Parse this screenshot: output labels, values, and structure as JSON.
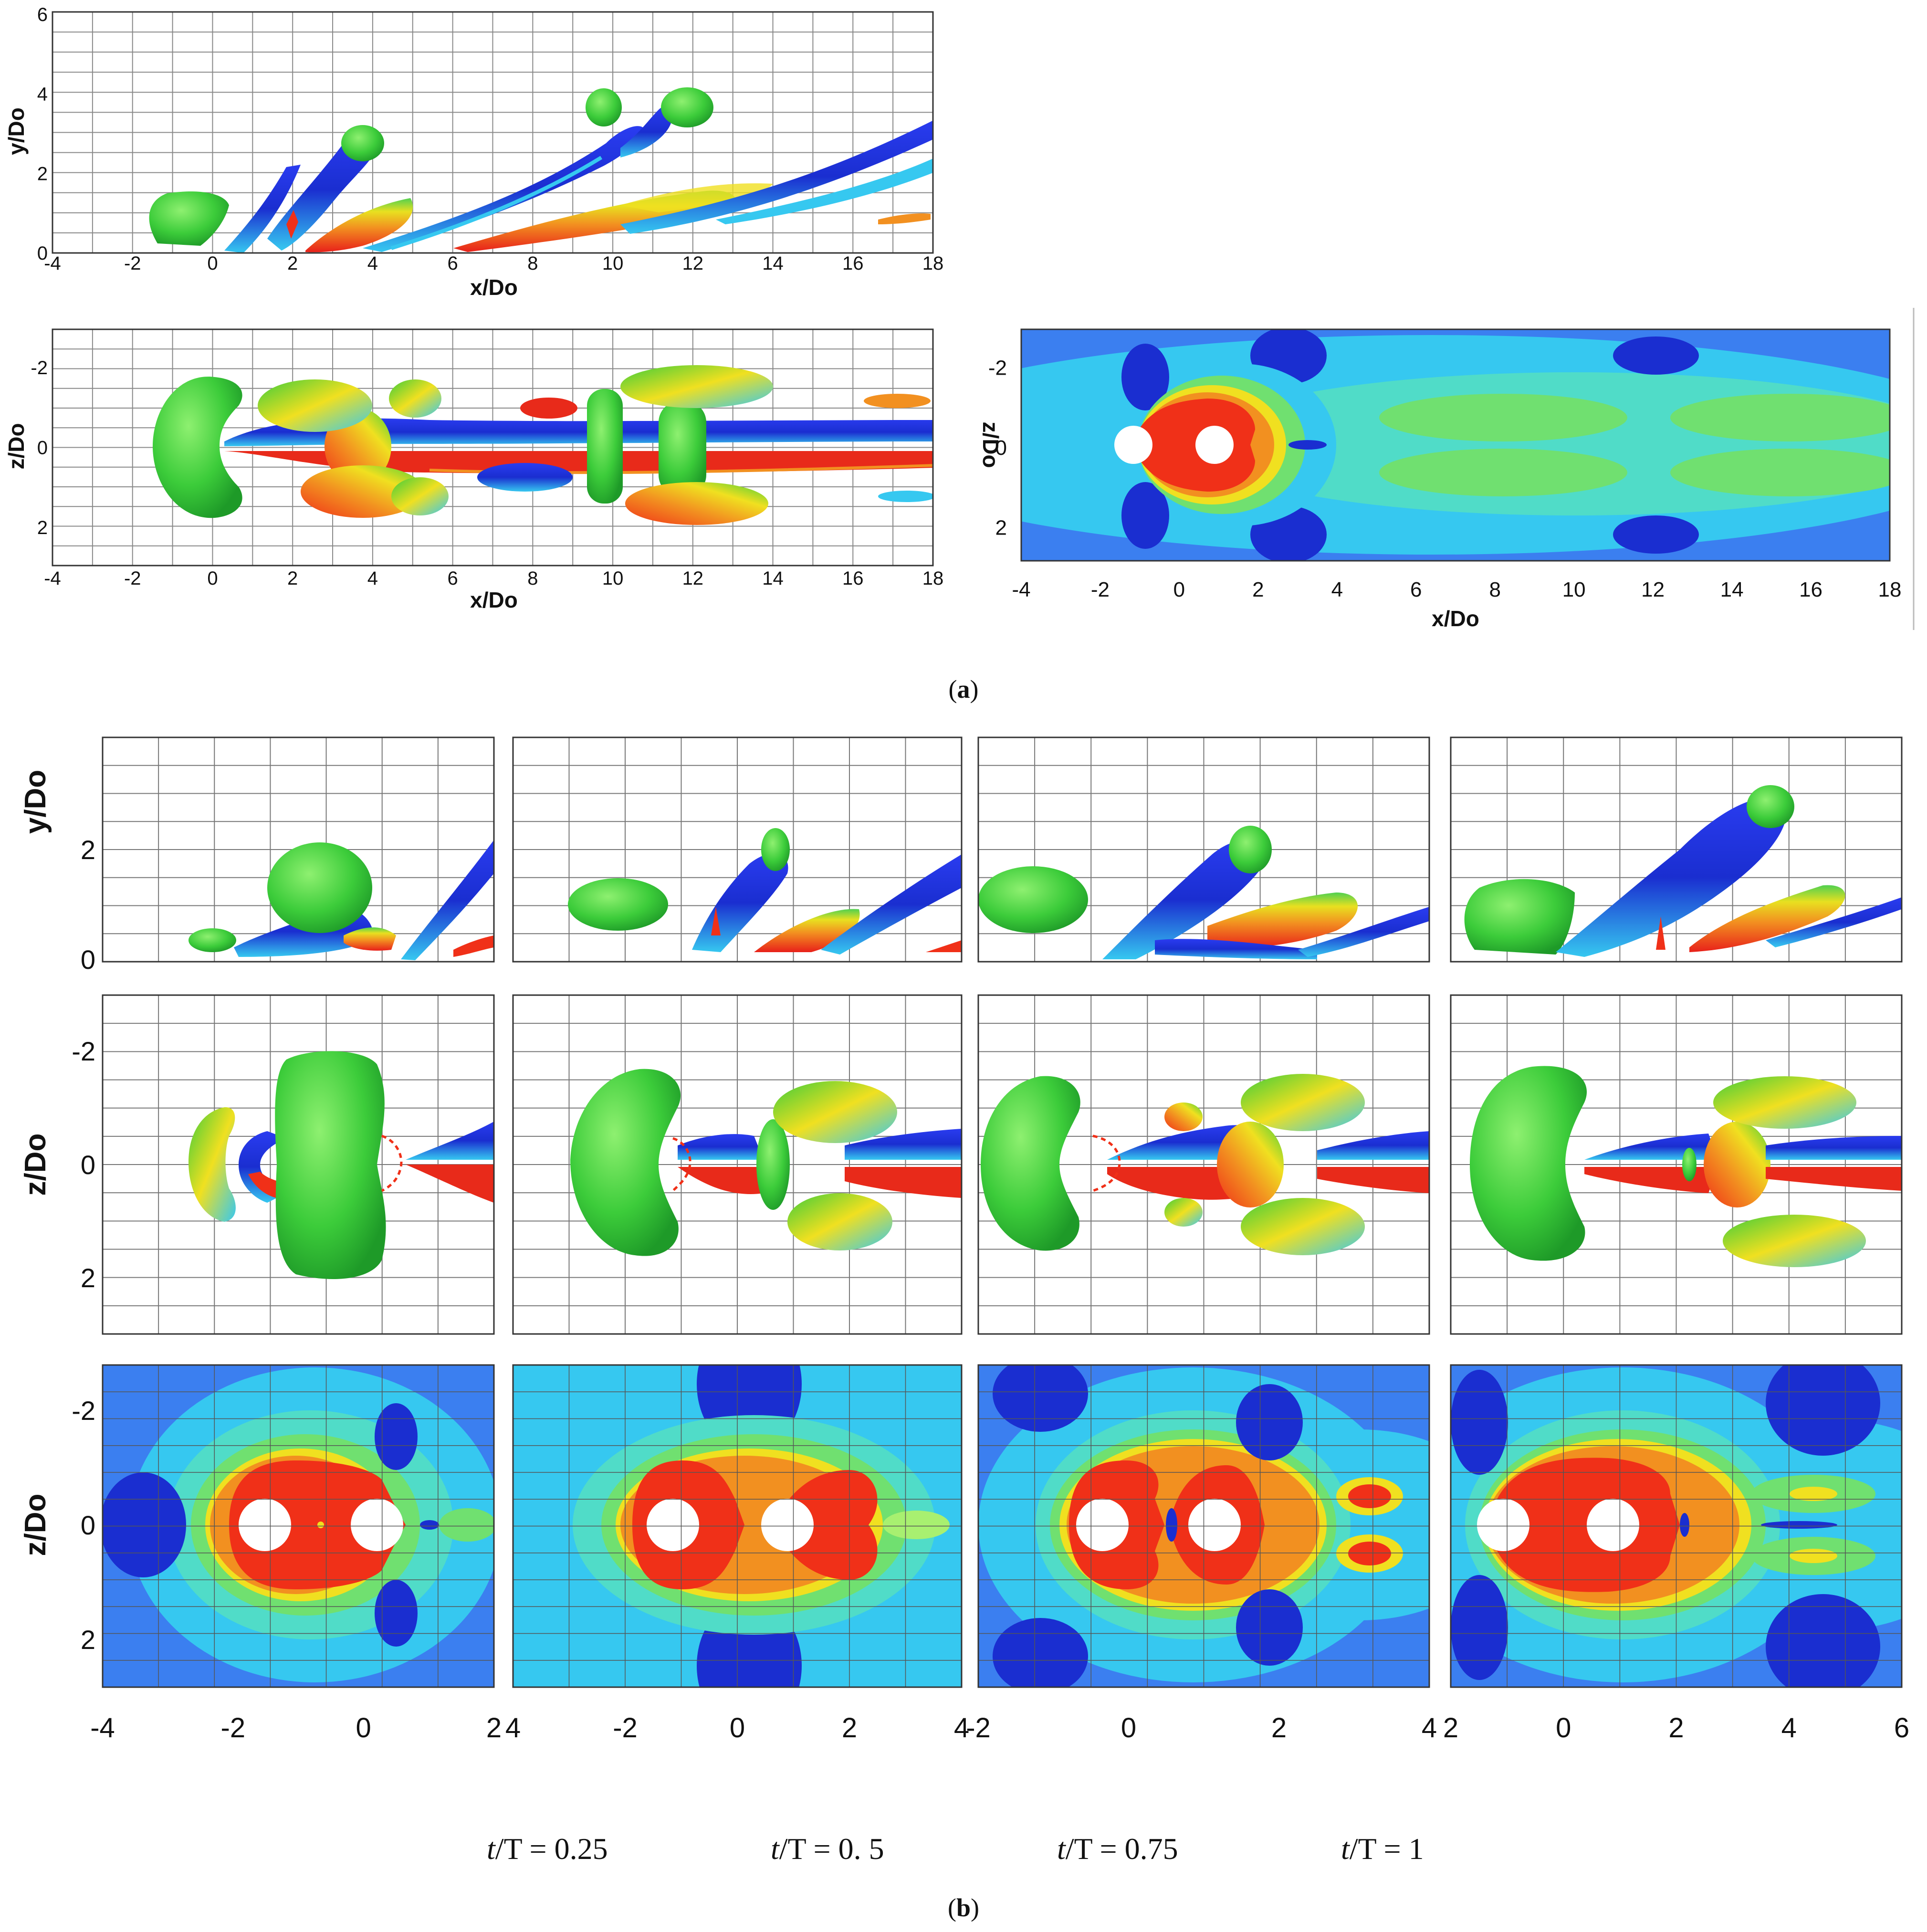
{
  "panel_a": {
    "label": "a",
    "side_view": {
      "xlabel": "x/Do",
      "ylabel": "y/Do",
      "xticks": [
        "-4",
        "-2",
        "0",
        "2",
        "4",
        "6",
        "8",
        "10",
        "12",
        "14",
        "16",
        "18"
      ],
      "yticks": [
        "0",
        "2",
        "4",
        "6"
      ]
    },
    "top_view": {
      "xlabel": "x/Do",
      "ylabel": "z/Do",
      "xticks": [
        "-4",
        "-2",
        "0",
        "2",
        "4",
        "6",
        "8",
        "10",
        "12",
        "14",
        "16",
        "18"
      ],
      "yticks": [
        "-2",
        "0",
        "2"
      ]
    },
    "contour": {
      "xlabel": "x/Do",
      "ylabel": "z/Do",
      "xticks": [
        "-4",
        "-2",
        "0",
        "2",
        "4",
        "6",
        "8",
        "10",
        "12",
        "14",
        "16",
        "18"
      ],
      "yticks": [
        "-2",
        "0",
        "2"
      ]
    }
  },
  "panel_b": {
    "label": "b",
    "side_ylabel": "y/Do",
    "side_yticks": [
      "2",
      "0"
    ],
    "top_ylabel": "z/Do",
    "top_yticks": [
      "-2",
      "0",
      "2"
    ],
    "contour_ylabel": "z/Do",
    "contour_yticks": [
      "-2",
      "0",
      "2"
    ],
    "col_xticks": [
      [
        "-4",
        "-2",
        "0",
        "2"
      ],
      [
        "4",
        "-2",
        "0",
        "2",
        "4"
      ],
      [
        "-2",
        "0",
        "2",
        "4"
      ],
      [
        "2",
        "0",
        "2",
        "4",
        "6"
      ]
    ],
    "time_labels": [
      {
        "t": "t",
        "rest": "/T = 0.25"
      },
      {
        "t": "t",
        "rest": "/T = 0. 5"
      },
      {
        "t": "t",
        "rest": "/T = 0.75"
      },
      {
        "t": "t",
        "rest": "/T = 1"
      }
    ]
  },
  "colors": {
    "blue_dark": "#1a2fd6",
    "blue": "#3b7ff0",
    "cyan": "#36c8f0",
    "green": "#38d24a",
    "yellow": "#f0e020",
    "orange": "#f29020",
    "red": "#f03018"
  }
}
